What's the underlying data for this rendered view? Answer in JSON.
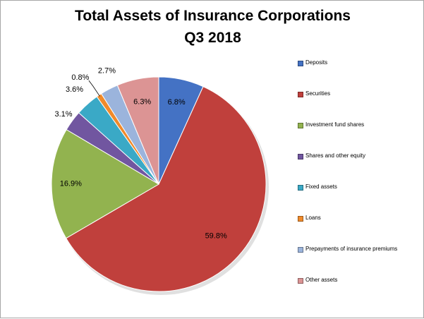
{
  "chart_data": {
    "type": "pie",
    "title_line1": "Total Assets of Insurance Corporations",
    "title_line2": "Q3 2018",
    "legend_position": "right",
    "slices": [
      {
        "name": "Deposits",
        "value": 6.8,
        "label": "6.8%",
        "color": "#4472c4"
      },
      {
        "name": "Securities",
        "value": 59.8,
        "label": "59.8%",
        "color": "#c0403c"
      },
      {
        "name": "Investment fund shares",
        "value": 16.9,
        "label": "16.9%",
        "color": "#92b34f"
      },
      {
        "name": "Shares and other equity",
        "value": 3.1,
        "label": "3.1%",
        "color": "#7156a0"
      },
      {
        "name": "Fixed assets",
        "value": 3.6,
        "label": "3.6%",
        "color": "#3aa9c6"
      },
      {
        "name": "Loans",
        "value": 0.8,
        "label": "0.8%",
        "color": "#f08a2a"
      },
      {
        "name": "Prepayments of insurance premiums",
        "value": 2.7,
        "label": "2.7%",
        "color": "#9bb4dc"
      },
      {
        "name": "Other assets",
        "value": 6.3,
        "label": "6.3%",
        "color": "#dc9494"
      }
    ]
  }
}
